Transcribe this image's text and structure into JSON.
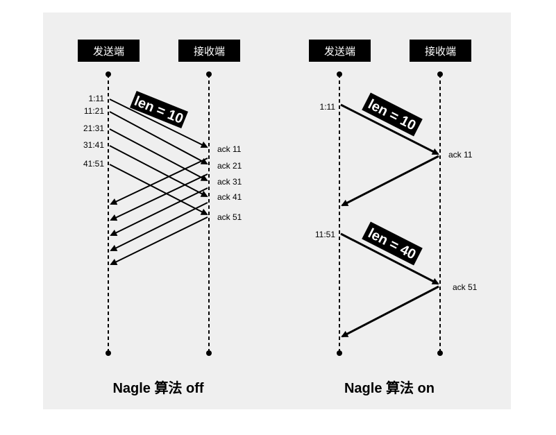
{
  "left": {
    "sender_label": "发送端",
    "receiver_label": "接收端",
    "caption": "Nagle 算法 off",
    "len_label": "len = 10",
    "seq_labels": [
      "1:11",
      "11:21",
      "21:31",
      "31:41",
      "41:51"
    ],
    "ack_labels": [
      "ack 11",
      "ack 21",
      "ack 31",
      "ack 41",
      "ack 51"
    ]
  },
  "right": {
    "sender_label": "发送端",
    "receiver_label": "接收端",
    "caption": "Nagle 算法 on",
    "len_label_1": "len = 10",
    "len_label_2": "len = 40",
    "seq_label_1": "1:11",
    "seq_label_2": "11:51",
    "ack_label_1": "ack 11",
    "ack_label_2": "ack 51"
  },
  "colors": {
    "background": "#efefef",
    "label_box": "#000000",
    "line": "#000000"
  }
}
